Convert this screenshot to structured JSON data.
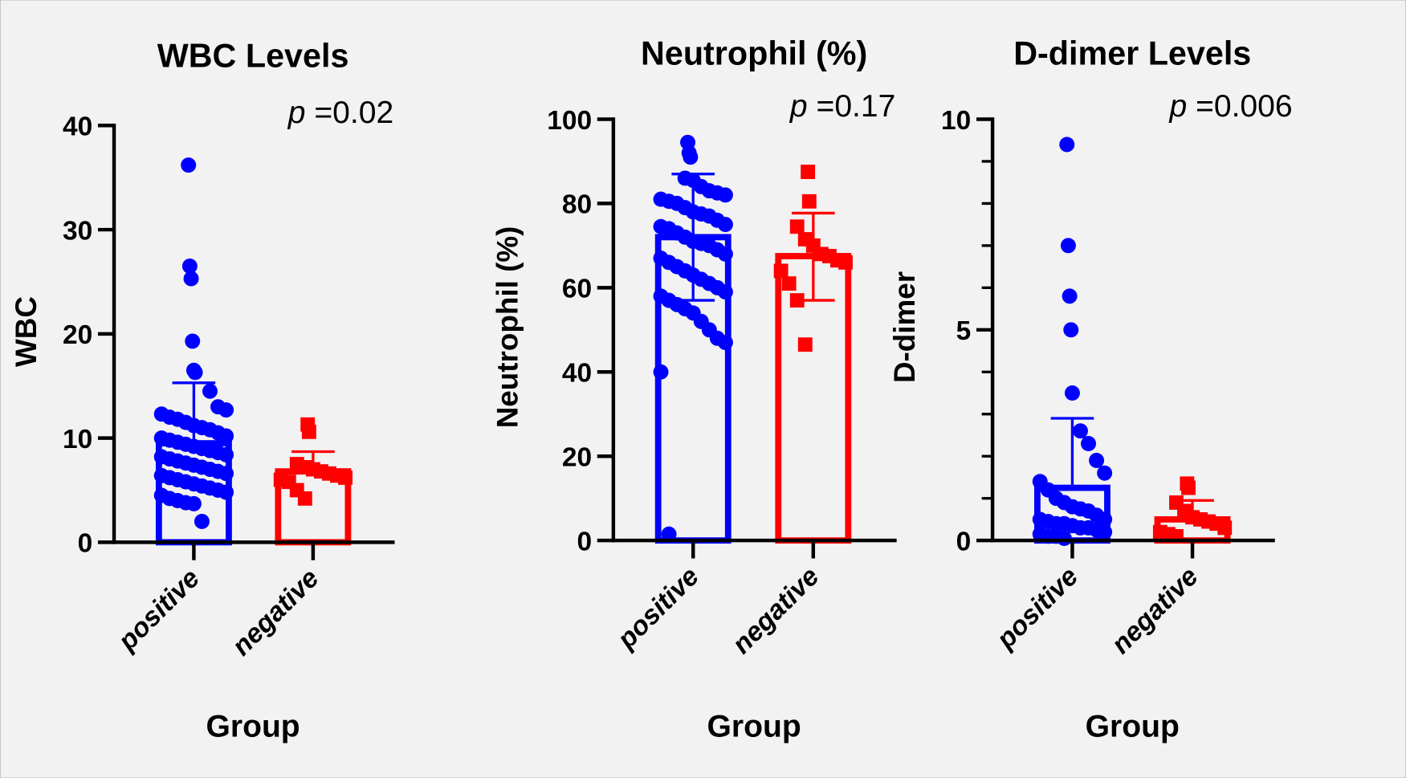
{
  "chart_data": [
    {
      "type": "bar",
      "title": "WBC Levels",
      "ylabel": "WBC",
      "xlabel": "Group",
      "annotation": {
        "p_prefix": "p",
        "p_text": " =0.02"
      },
      "ylim": [
        0,
        40
      ],
      "yticks": [
        0,
        10,
        20,
        30,
        40
      ],
      "ytick_labels": [
        "0",
        "10",
        "20",
        "30",
        "40"
      ],
      "minor_ticks": [],
      "categories": [
        "positive",
        "negative"
      ],
      "series": [
        {
          "name": "positive",
          "color": "#0000ff",
          "marker": "circle",
          "mean": 9.5,
          "sd_upper": 15.3,
          "sd_lower": null,
          "points": [
            36.2,
            26.5,
            25.3,
            19.3,
            16.5,
            16.3,
            14.5,
            13.0,
            12.7,
            12.3,
            12.0,
            11.8,
            11.5,
            11.2,
            11.0,
            10.8,
            10.5,
            10.2,
            10.0,
            9.8,
            9.6,
            9.4,
            9.2,
            9.0,
            8.8,
            8.6,
            8.4,
            8.2,
            8.0,
            7.8,
            7.6,
            7.4,
            7.2,
            7.0,
            6.8,
            6.6,
            6.4,
            6.2,
            6.0,
            5.8,
            5.6,
            5.4,
            5.2,
            5.0,
            4.8,
            4.5,
            4.2,
            4.0,
            3.8,
            3.7,
            2.0
          ]
        },
        {
          "name": "negative",
          "color": "#ff0000",
          "marker": "square",
          "mean": 6.8,
          "sd_upper": 8.7,
          "sd_lower": null,
          "points": [
            11.3,
            10.6,
            7.5,
            7.2,
            7.0,
            6.8,
            6.6,
            6.4,
            6.2,
            6.0,
            5.8,
            5.0,
            4.2
          ]
        }
      ]
    },
    {
      "type": "bar",
      "title": "Neutrophil (%)",
      "ylabel": "Neutrophil (%)",
      "xlabel": "Group",
      "annotation": {
        "p_prefix": "p",
        "p_text": " =0.17"
      },
      "ylim": [
        0,
        100
      ],
      "yticks": [
        0,
        20,
        40,
        60,
        80,
        100
      ],
      "ytick_labels": [
        "0",
        "20",
        "40",
        "60",
        "80",
        "100"
      ],
      "minor_ticks": [],
      "categories": [
        "positive",
        "negative"
      ],
      "series": [
        {
          "name": "positive",
          "color": "#0000ff",
          "marker": "circle",
          "mean": 72,
          "sd_upper": 87,
          "sd_lower": 57,
          "points": [
            94.5,
            92,
            91,
            86,
            85.5,
            84,
            83,
            82.5,
            82,
            81,
            80.5,
            80,
            79,
            78,
            77.5,
            77,
            76,
            75,
            74.5,
            74,
            73,
            72,
            71,
            70.5,
            70,
            69,
            68,
            67,
            66,
            65,
            64,
            63,
            62,
            61,
            60,
            59,
            58,
            57,
            56,
            55,
            54,
            52,
            50,
            48,
            47,
            40,
            1.5
          ]
        },
        {
          "name": "negative",
          "color": "#ff0000",
          "marker": "square",
          "mean": 67.5,
          "sd_upper": 77.7,
          "sd_lower": 57,
          "points": [
            87.5,
            80.5,
            74.5,
            71.5,
            70,
            68,
            67.5,
            66.5,
            66,
            64,
            61,
            57,
            46.5
          ]
        }
      ]
    },
    {
      "type": "bar",
      "title": "D-dimer Levels",
      "ylabel": "D-dimer",
      "xlabel": "Group",
      "annotation": {
        "p_prefix": "p",
        "p_text": " =0.006"
      },
      "ylim": [
        0,
        10
      ],
      "yticks": [
        0,
        5,
        10
      ],
      "ytick_labels": [
        "0",
        "5",
        "10"
      ],
      "minor_ticks": [
        1,
        2,
        3,
        4,
        6,
        7,
        8,
        9
      ],
      "categories": [
        "positive",
        "negative"
      ],
      "series": [
        {
          "name": "positive",
          "color": "#0000ff",
          "marker": "circle",
          "mean": 1.25,
          "sd_upper": 2.9,
          "sd_lower": null,
          "points": [
            9.4,
            7.0,
            5.8,
            5.0,
            3.5,
            2.6,
            2.3,
            1.9,
            1.6,
            1.4,
            1.2,
            1.0,
            0.9,
            0.8,
            0.75,
            0.7,
            0.6,
            0.5,
            0.5,
            0.45,
            0.4,
            0.4,
            0.35,
            0.3,
            0.3,
            0.25,
            0.2,
            0.15,
            0.1,
            0.1,
            0.05
          ]
        },
        {
          "name": "negative",
          "color": "#ff0000",
          "marker": "square",
          "mean": 0.5,
          "sd_upper": 0.95,
          "sd_lower": null,
          "points": [
            1.35,
            1.25,
            0.9,
            0.7,
            0.55,
            0.5,
            0.45,
            0.4,
            0.3,
            0.2,
            0.15,
            0.1
          ]
        }
      ]
    }
  ]
}
